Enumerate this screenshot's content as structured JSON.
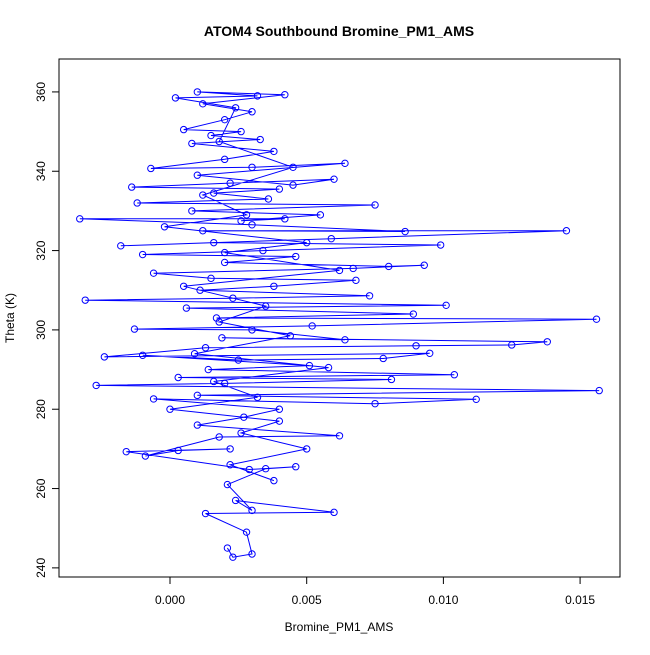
{
  "chart_data": {
    "type": "line",
    "title": "ATOM4 Southbound Bromine_PM1_AMS",
    "xlabel": "Bromine_PM1_AMS",
    "ylabel": "Theta (K)",
    "xlim": [
      -0.00406,
      0.01646
    ],
    "ylim": [
      237.7,
      368.3
    ],
    "xticks": [
      0,
      0.005,
      0.01,
      0.015
    ],
    "xtick_labels": [
      "0.000",
      "0.005",
      "0.010",
      "0.015"
    ],
    "yticks": [
      240,
      260,
      280,
      300,
      320,
      340,
      360
    ],
    "ytick_labels": [
      "240",
      "260",
      "280",
      "300",
      "320",
      "340",
      "360"
    ],
    "grid": false,
    "series": [
      {
        "name": "Bromine_PM1_AMS",
        "color": "#0000ff",
        "marker": "open-circle",
        "points": [
          [
            0.0021,
            245
          ],
          [
            0.0023,
            242.7
          ],
          [
            0.003,
            243.5
          ],
          [
            0.0028,
            249
          ],
          [
            0.0013,
            253.7
          ],
          [
            0.006,
            254
          ],
          [
            0.0024,
            257
          ],
          [
            0.003,
            254.5
          ],
          [
            0.0021,
            261
          ],
          [
            0.0035,
            265
          ],
          [
            0.0046,
            265.5
          ],
          [
            0.0029,
            264.8
          ],
          [
            -0.0016,
            269.3
          ],
          [
            0.0022,
            270
          ],
          [
            0.0003,
            269.6
          ],
          [
            -0.0009,
            268.2
          ],
          [
            0.0018,
            273
          ],
          [
            0.0062,
            273.3
          ],
          [
            0.001,
            276
          ],
          [
            0.0027,
            278
          ],
          [
            0.004,
            280
          ],
          [
            -0.0006,
            282.6
          ],
          [
            0.0075,
            281.4
          ],
          [
            0.0112,
            282.5
          ],
          [
            0.001,
            283.5
          ],
          [
            0.0157,
            284.7
          ],
          [
            -0.0027,
            286
          ],
          [
            0.002,
            286.5
          ],
          [
            0.0081,
            287.5
          ],
          [
            0.0003,
            288
          ],
          [
            0.0104,
            288.7
          ],
          [
            0.0014,
            290
          ],
          [
            0.0051,
            291
          ],
          [
            -0.001,
            293.6
          ],
          [
            0.0025,
            292.4
          ],
          [
            0.0078,
            292.8
          ],
          [
            0.0095,
            294.1
          ],
          [
            -0.0024,
            293.2
          ],
          [
            0.0013,
            295.5
          ],
          [
            0.009,
            296
          ],
          [
            0.0125,
            296.2
          ],
          [
            0.0138,
            297
          ],
          [
            0.0019,
            298
          ],
          [
            0.0064,
            297.5
          ],
          [
            0.003,
            300
          ],
          [
            -0.0013,
            300.2
          ],
          [
            0.0052,
            301
          ],
          [
            0.0156,
            302.7
          ],
          [
            0.0017,
            303
          ],
          [
            0.0089,
            304
          ],
          [
            0.0006,
            305.5
          ],
          [
            0.0101,
            306.2
          ],
          [
            -0.0031,
            307.5
          ],
          [
            0.0023,
            308
          ],
          [
            0.0073,
            308.6
          ],
          [
            0.0011,
            310
          ],
          [
            0.0038,
            311
          ],
          [
            0.0068,
            312.5
          ],
          [
            0.0015,
            313
          ],
          [
            -0.0006,
            314.3
          ],
          [
            0.0067,
            315.5
          ],
          [
            0.0093,
            316.3
          ],
          [
            0.008,
            316
          ],
          [
            0.002,
            317
          ],
          [
            0.0046,
            318.5
          ],
          [
            -0.001,
            319
          ],
          [
            0.0034,
            320
          ],
          [
            0.0099,
            321.4
          ],
          [
            0.0016,
            322
          ],
          [
            -0.0018,
            321.2
          ],
          [
            0.0059,
            323
          ],
          [
            0.0145,
            325
          ],
          [
            0.0012,
            325
          ],
          [
            0.0086,
            324.8
          ],
          [
            0.003,
            326.5
          ],
          [
            -0.0033,
            328
          ],
          [
            0.0042,
            328
          ],
          [
            0.0026,
            327.5
          ],
          [
            0.0055,
            329
          ],
          [
            0.0008,
            330
          ],
          [
            0.0075,
            331.5
          ],
          [
            -0.0012,
            332
          ],
          [
            0.0036,
            333
          ],
          [
            0.0016,
            334.5
          ],
          [
            0.004,
            335.5
          ],
          [
            -0.0014,
            336
          ],
          [
            0.0022,
            337
          ],
          [
            0.006,
            338
          ],
          [
            0.0045,
            336.5
          ],
          [
            0.001,
            339
          ],
          [
            0.0064,
            342
          ],
          [
            0.003,
            341
          ],
          [
            -0.0007,
            340.7
          ],
          [
            0.002,
            343
          ],
          [
            0.0038,
            345
          ],
          [
            0.0008,
            347
          ],
          [
            0.0033,
            348
          ],
          [
            0.0015,
            349
          ],
          [
            0.0026,
            350
          ],
          [
            0.0005,
            350.5
          ],
          [
            0.002,
            353
          ],
          [
            0.003,
            355
          ],
          [
            0.0012,
            357
          ],
          [
            0.0042,
            359.3
          ],
          [
            0.001,
            360
          ],
          [
            0.0032,
            359
          ],
          [
            0.0002,
            358.5
          ],
          [
            0.0024,
            356
          ],
          [
            0.0018,
            347.5
          ],
          [
            0.0045,
            341
          ],
          [
            0.0012,
            334
          ],
          [
            0.0028,
            329
          ],
          [
            -0.0002,
            326
          ],
          [
            0.005,
            322
          ],
          [
            0.002,
            319.5
          ],
          [
            0.0062,
            315
          ],
          [
            0.0005,
            311
          ],
          [
            0.0035,
            306
          ],
          [
            0.0018,
            302
          ],
          [
            0.0044,
            298.5
          ],
          [
            0.0009,
            294
          ],
          [
            0.0058,
            290.5
          ],
          [
            0.0016,
            287
          ],
          [
            0.0032,
            283
          ],
          [
            0.0,
            280
          ],
          [
            0.004,
            277
          ],
          [
            0.0026,
            274
          ],
          [
            0.005,
            270
          ],
          [
            0.0022,
            266
          ],
          [
            0.0038,
            262
          ]
        ]
      }
    ]
  }
}
